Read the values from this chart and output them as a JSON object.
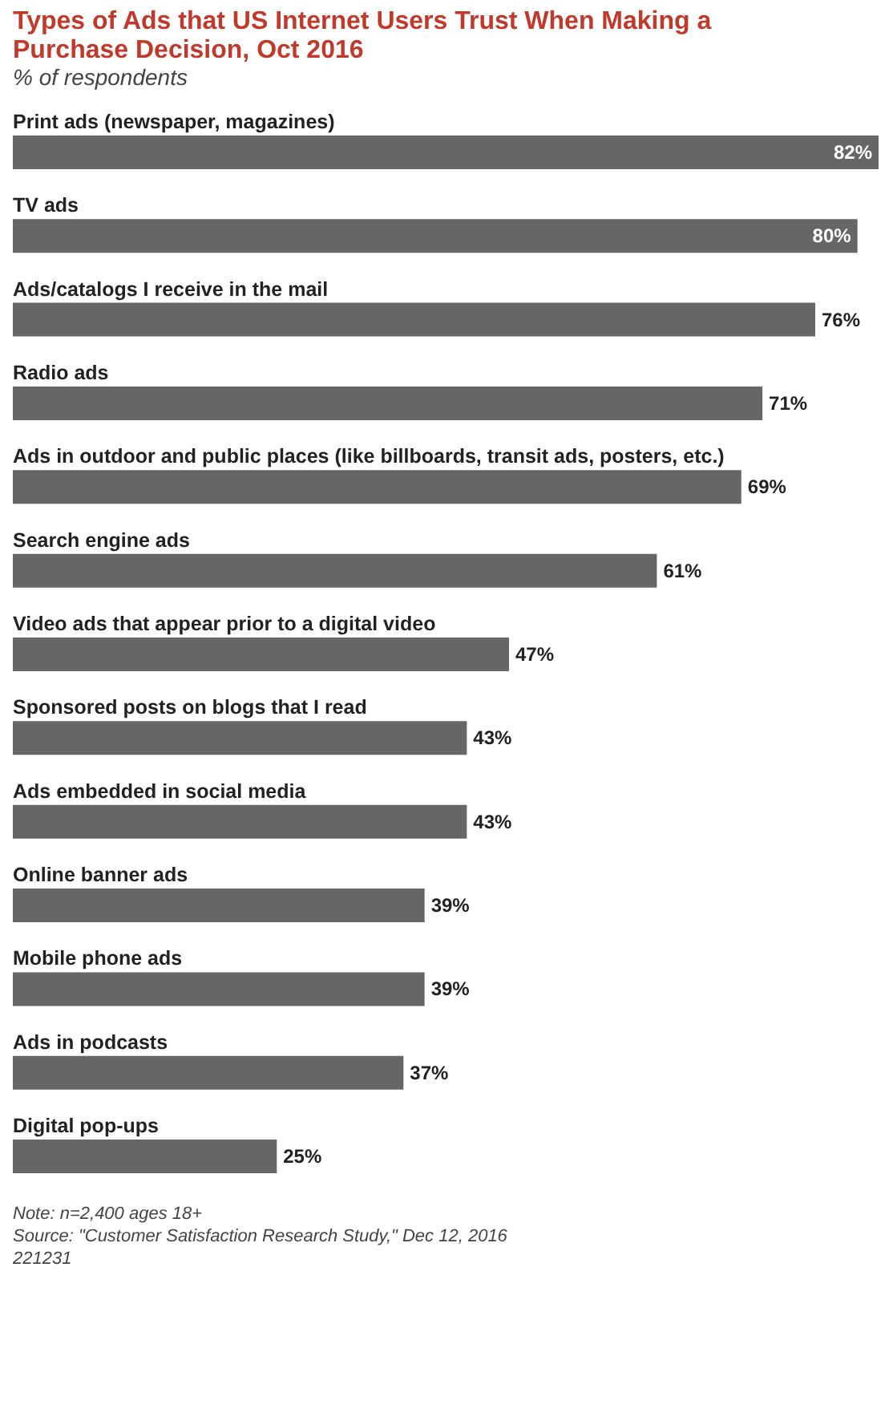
{
  "chart_data": {
    "type": "bar",
    "orientation": "horizontal",
    "title": "Types of Ads that US Internet Users Trust When Making a Purchase Decision, Oct 2016",
    "subtitle": "% of respondents",
    "categories": [
      "Print ads (newspaper, magazines)",
      "TV ads",
      "Ads/catalogs I receive in the mail",
      "Radio ads",
      "Ads in outdoor and public places (like billboards, transit ads, posters, etc.)",
      "Search engine ads",
      "Video ads that appear prior to a digital video",
      "Sponsored posts on blogs that I read",
      "Ads embedded in social media",
      "Online banner ads",
      "Mobile phone ads",
      "Ads in podcasts",
      "Digital pop-ups"
    ],
    "values": [
      82,
      80,
      76,
      71,
      69,
      61,
      47,
      43,
      43,
      39,
      39,
      37,
      25
    ],
    "value_labels": [
      "82%",
      "80%",
      "76%",
      "71%",
      "69%",
      "61%",
      "47%",
      "43%",
      "43%",
      "39%",
      "39%",
      "37%",
      "25%"
    ],
    "color": "#666666",
    "tick_labels": false,
    "annotations": [
      "Note: n=2,400 ages 18+",
      "Source: \"Customer Satisfaction Research Study,\" Dec 12, 2016",
      "221231"
    ]
  }
}
